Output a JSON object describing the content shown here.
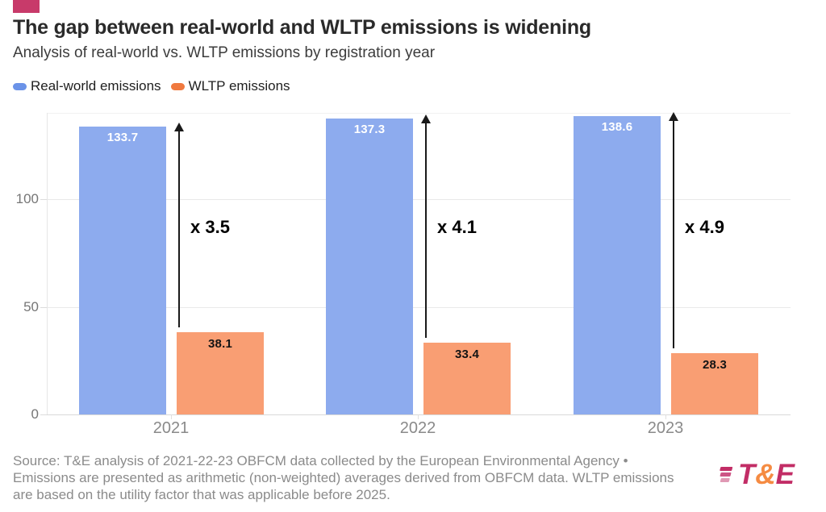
{
  "header": {
    "brand_color": "#c83a6a",
    "title": "The gap between real-world and WLTP emissions is widening",
    "subtitle": "Analysis of real-world vs. WLTP emissions by registration year"
  },
  "legend": {
    "items": [
      {
        "label": "Real-world emissions",
        "color": "#6b93e8"
      },
      {
        "label": "WLTP emissions",
        "color": "#f0793f"
      }
    ]
  },
  "chart_data": {
    "type": "bar",
    "title": "The gap between real-world and WLTP emissions is widening",
    "subtitle": "Analysis of real-world vs. WLTP emissions by registration year",
    "categories": [
      "2021",
      "2022",
      "2023"
    ],
    "series": [
      {
        "name": "Real-world emissions",
        "color": "#8dabee",
        "label_color": "#ffffff",
        "values": [
          133.7,
          137.3,
          138.6
        ]
      },
      {
        "name": "WLTP emissions",
        "color": "#f99e73",
        "label_color": "#141414",
        "values": [
          38.1,
          33.4,
          28.3
        ]
      }
    ],
    "multipliers": [
      "x 3.5",
      "x 4.1",
      "x 4.9"
    ],
    "xlabel": "",
    "ylabel": "",
    "yticks": [
      0,
      50,
      100
    ],
    "ylim": [
      0,
      140
    ],
    "grid": "horizontal",
    "legend_position": "top"
  },
  "source": {
    "lines": [
      "Source: T&E analysis of 2021-22-23 OBFCM data collected by the European Environmental Agency •",
      "Emissions are presented as arithmetic (non-weighted) averages derived from OBFCM data. WLTP emissions",
      "are based on the utility factor that was applicable before 2025."
    ]
  },
  "logo": {
    "letters": [
      {
        "text": "T",
        "color": "#c22d66"
      },
      {
        "text": "&",
        "color": "#f58b42"
      },
      {
        "text": "E",
        "color": "#c22d66"
      }
    ],
    "speedline_colors": [
      "#c22d66",
      "#cd5585",
      "#e099b4"
    ]
  }
}
